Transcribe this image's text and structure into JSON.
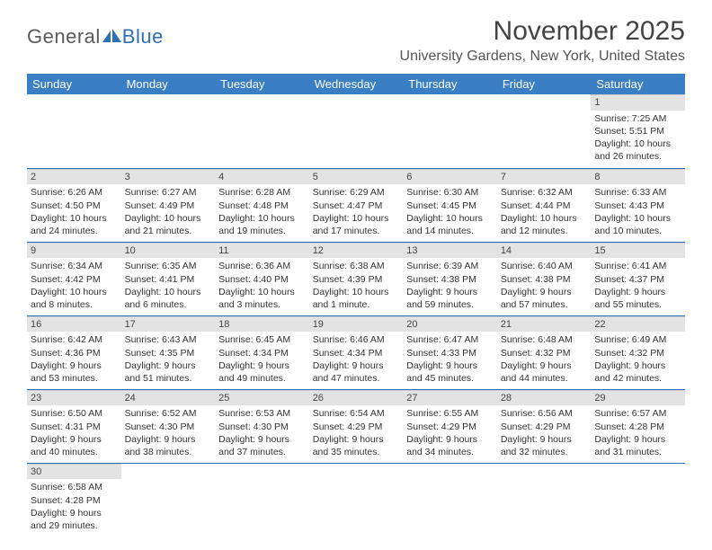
{
  "logo": {
    "part1": "General",
    "part2": "Blue"
  },
  "title": "November 2025",
  "location": "University Gardens, New York, United States",
  "colors": {
    "header_bg": "#3a7fc4",
    "header_text": "#ffffff",
    "accent": "#2e6fb4",
    "logo_gray": "#5a5a5a",
    "day_bar_bg": "#e3e3e3",
    "cell_border": "#2e6fb4"
  },
  "day_headers": [
    "Sunday",
    "Monday",
    "Tuesday",
    "Wednesday",
    "Thursday",
    "Friday",
    "Saturday"
  ],
  "weeks": [
    [
      null,
      null,
      null,
      null,
      null,
      null,
      {
        "n": "1",
        "sr": "Sunrise: 7:25 AM",
        "ss": "Sunset: 5:51 PM",
        "dl1": "Daylight: 10 hours",
        "dl2": "and 26 minutes."
      }
    ],
    [
      {
        "n": "2",
        "sr": "Sunrise: 6:26 AM",
        "ss": "Sunset: 4:50 PM",
        "dl1": "Daylight: 10 hours",
        "dl2": "and 24 minutes."
      },
      {
        "n": "3",
        "sr": "Sunrise: 6:27 AM",
        "ss": "Sunset: 4:49 PM",
        "dl1": "Daylight: 10 hours",
        "dl2": "and 21 minutes."
      },
      {
        "n": "4",
        "sr": "Sunrise: 6:28 AM",
        "ss": "Sunset: 4:48 PM",
        "dl1": "Daylight: 10 hours",
        "dl2": "and 19 minutes."
      },
      {
        "n": "5",
        "sr": "Sunrise: 6:29 AM",
        "ss": "Sunset: 4:47 PM",
        "dl1": "Daylight: 10 hours",
        "dl2": "and 17 minutes."
      },
      {
        "n": "6",
        "sr": "Sunrise: 6:30 AM",
        "ss": "Sunset: 4:45 PM",
        "dl1": "Daylight: 10 hours",
        "dl2": "and 14 minutes."
      },
      {
        "n": "7",
        "sr": "Sunrise: 6:32 AM",
        "ss": "Sunset: 4:44 PM",
        "dl1": "Daylight: 10 hours",
        "dl2": "and 12 minutes."
      },
      {
        "n": "8",
        "sr": "Sunrise: 6:33 AM",
        "ss": "Sunset: 4:43 PM",
        "dl1": "Daylight: 10 hours",
        "dl2": "and 10 minutes."
      }
    ],
    [
      {
        "n": "9",
        "sr": "Sunrise: 6:34 AM",
        "ss": "Sunset: 4:42 PM",
        "dl1": "Daylight: 10 hours",
        "dl2": "and 8 minutes."
      },
      {
        "n": "10",
        "sr": "Sunrise: 6:35 AM",
        "ss": "Sunset: 4:41 PM",
        "dl1": "Daylight: 10 hours",
        "dl2": "and 6 minutes."
      },
      {
        "n": "11",
        "sr": "Sunrise: 6:36 AM",
        "ss": "Sunset: 4:40 PM",
        "dl1": "Daylight: 10 hours",
        "dl2": "and 3 minutes."
      },
      {
        "n": "12",
        "sr": "Sunrise: 6:38 AM",
        "ss": "Sunset: 4:39 PM",
        "dl1": "Daylight: 10 hours",
        "dl2": "and 1 minute."
      },
      {
        "n": "13",
        "sr": "Sunrise: 6:39 AM",
        "ss": "Sunset: 4:38 PM",
        "dl1": "Daylight: 9 hours",
        "dl2": "and 59 minutes."
      },
      {
        "n": "14",
        "sr": "Sunrise: 6:40 AM",
        "ss": "Sunset: 4:38 PM",
        "dl1": "Daylight: 9 hours",
        "dl2": "and 57 minutes."
      },
      {
        "n": "15",
        "sr": "Sunrise: 6:41 AM",
        "ss": "Sunset: 4:37 PM",
        "dl1": "Daylight: 9 hours",
        "dl2": "and 55 minutes."
      }
    ],
    [
      {
        "n": "16",
        "sr": "Sunrise: 6:42 AM",
        "ss": "Sunset: 4:36 PM",
        "dl1": "Daylight: 9 hours",
        "dl2": "and 53 minutes."
      },
      {
        "n": "17",
        "sr": "Sunrise: 6:43 AM",
        "ss": "Sunset: 4:35 PM",
        "dl1": "Daylight: 9 hours",
        "dl2": "and 51 minutes."
      },
      {
        "n": "18",
        "sr": "Sunrise: 6:45 AM",
        "ss": "Sunset: 4:34 PM",
        "dl1": "Daylight: 9 hours",
        "dl2": "and 49 minutes."
      },
      {
        "n": "19",
        "sr": "Sunrise: 6:46 AM",
        "ss": "Sunset: 4:34 PM",
        "dl1": "Daylight: 9 hours",
        "dl2": "and 47 minutes."
      },
      {
        "n": "20",
        "sr": "Sunrise: 6:47 AM",
        "ss": "Sunset: 4:33 PM",
        "dl1": "Daylight: 9 hours",
        "dl2": "and 45 minutes."
      },
      {
        "n": "21",
        "sr": "Sunrise: 6:48 AM",
        "ss": "Sunset: 4:32 PM",
        "dl1": "Daylight: 9 hours",
        "dl2": "and 44 minutes."
      },
      {
        "n": "22",
        "sr": "Sunrise: 6:49 AM",
        "ss": "Sunset: 4:32 PM",
        "dl1": "Daylight: 9 hours",
        "dl2": "and 42 minutes."
      }
    ],
    [
      {
        "n": "23",
        "sr": "Sunrise: 6:50 AM",
        "ss": "Sunset: 4:31 PM",
        "dl1": "Daylight: 9 hours",
        "dl2": "and 40 minutes."
      },
      {
        "n": "24",
        "sr": "Sunrise: 6:52 AM",
        "ss": "Sunset: 4:30 PM",
        "dl1": "Daylight: 9 hours",
        "dl2": "and 38 minutes."
      },
      {
        "n": "25",
        "sr": "Sunrise: 6:53 AM",
        "ss": "Sunset: 4:30 PM",
        "dl1": "Daylight: 9 hours",
        "dl2": "and 37 minutes."
      },
      {
        "n": "26",
        "sr": "Sunrise: 6:54 AM",
        "ss": "Sunset: 4:29 PM",
        "dl1": "Daylight: 9 hours",
        "dl2": "and 35 minutes."
      },
      {
        "n": "27",
        "sr": "Sunrise: 6:55 AM",
        "ss": "Sunset: 4:29 PM",
        "dl1": "Daylight: 9 hours",
        "dl2": "and 34 minutes."
      },
      {
        "n": "28",
        "sr": "Sunrise: 6:56 AM",
        "ss": "Sunset: 4:29 PM",
        "dl1": "Daylight: 9 hours",
        "dl2": "and 32 minutes."
      },
      {
        "n": "29",
        "sr": "Sunrise: 6:57 AM",
        "ss": "Sunset: 4:28 PM",
        "dl1": "Daylight: 9 hours",
        "dl2": "and 31 minutes."
      }
    ],
    [
      {
        "n": "30",
        "sr": "Sunrise: 6:58 AM",
        "ss": "Sunset: 4:28 PM",
        "dl1": "Daylight: 9 hours",
        "dl2": "and 29 minutes."
      },
      null,
      null,
      null,
      null,
      null,
      null
    ]
  ]
}
